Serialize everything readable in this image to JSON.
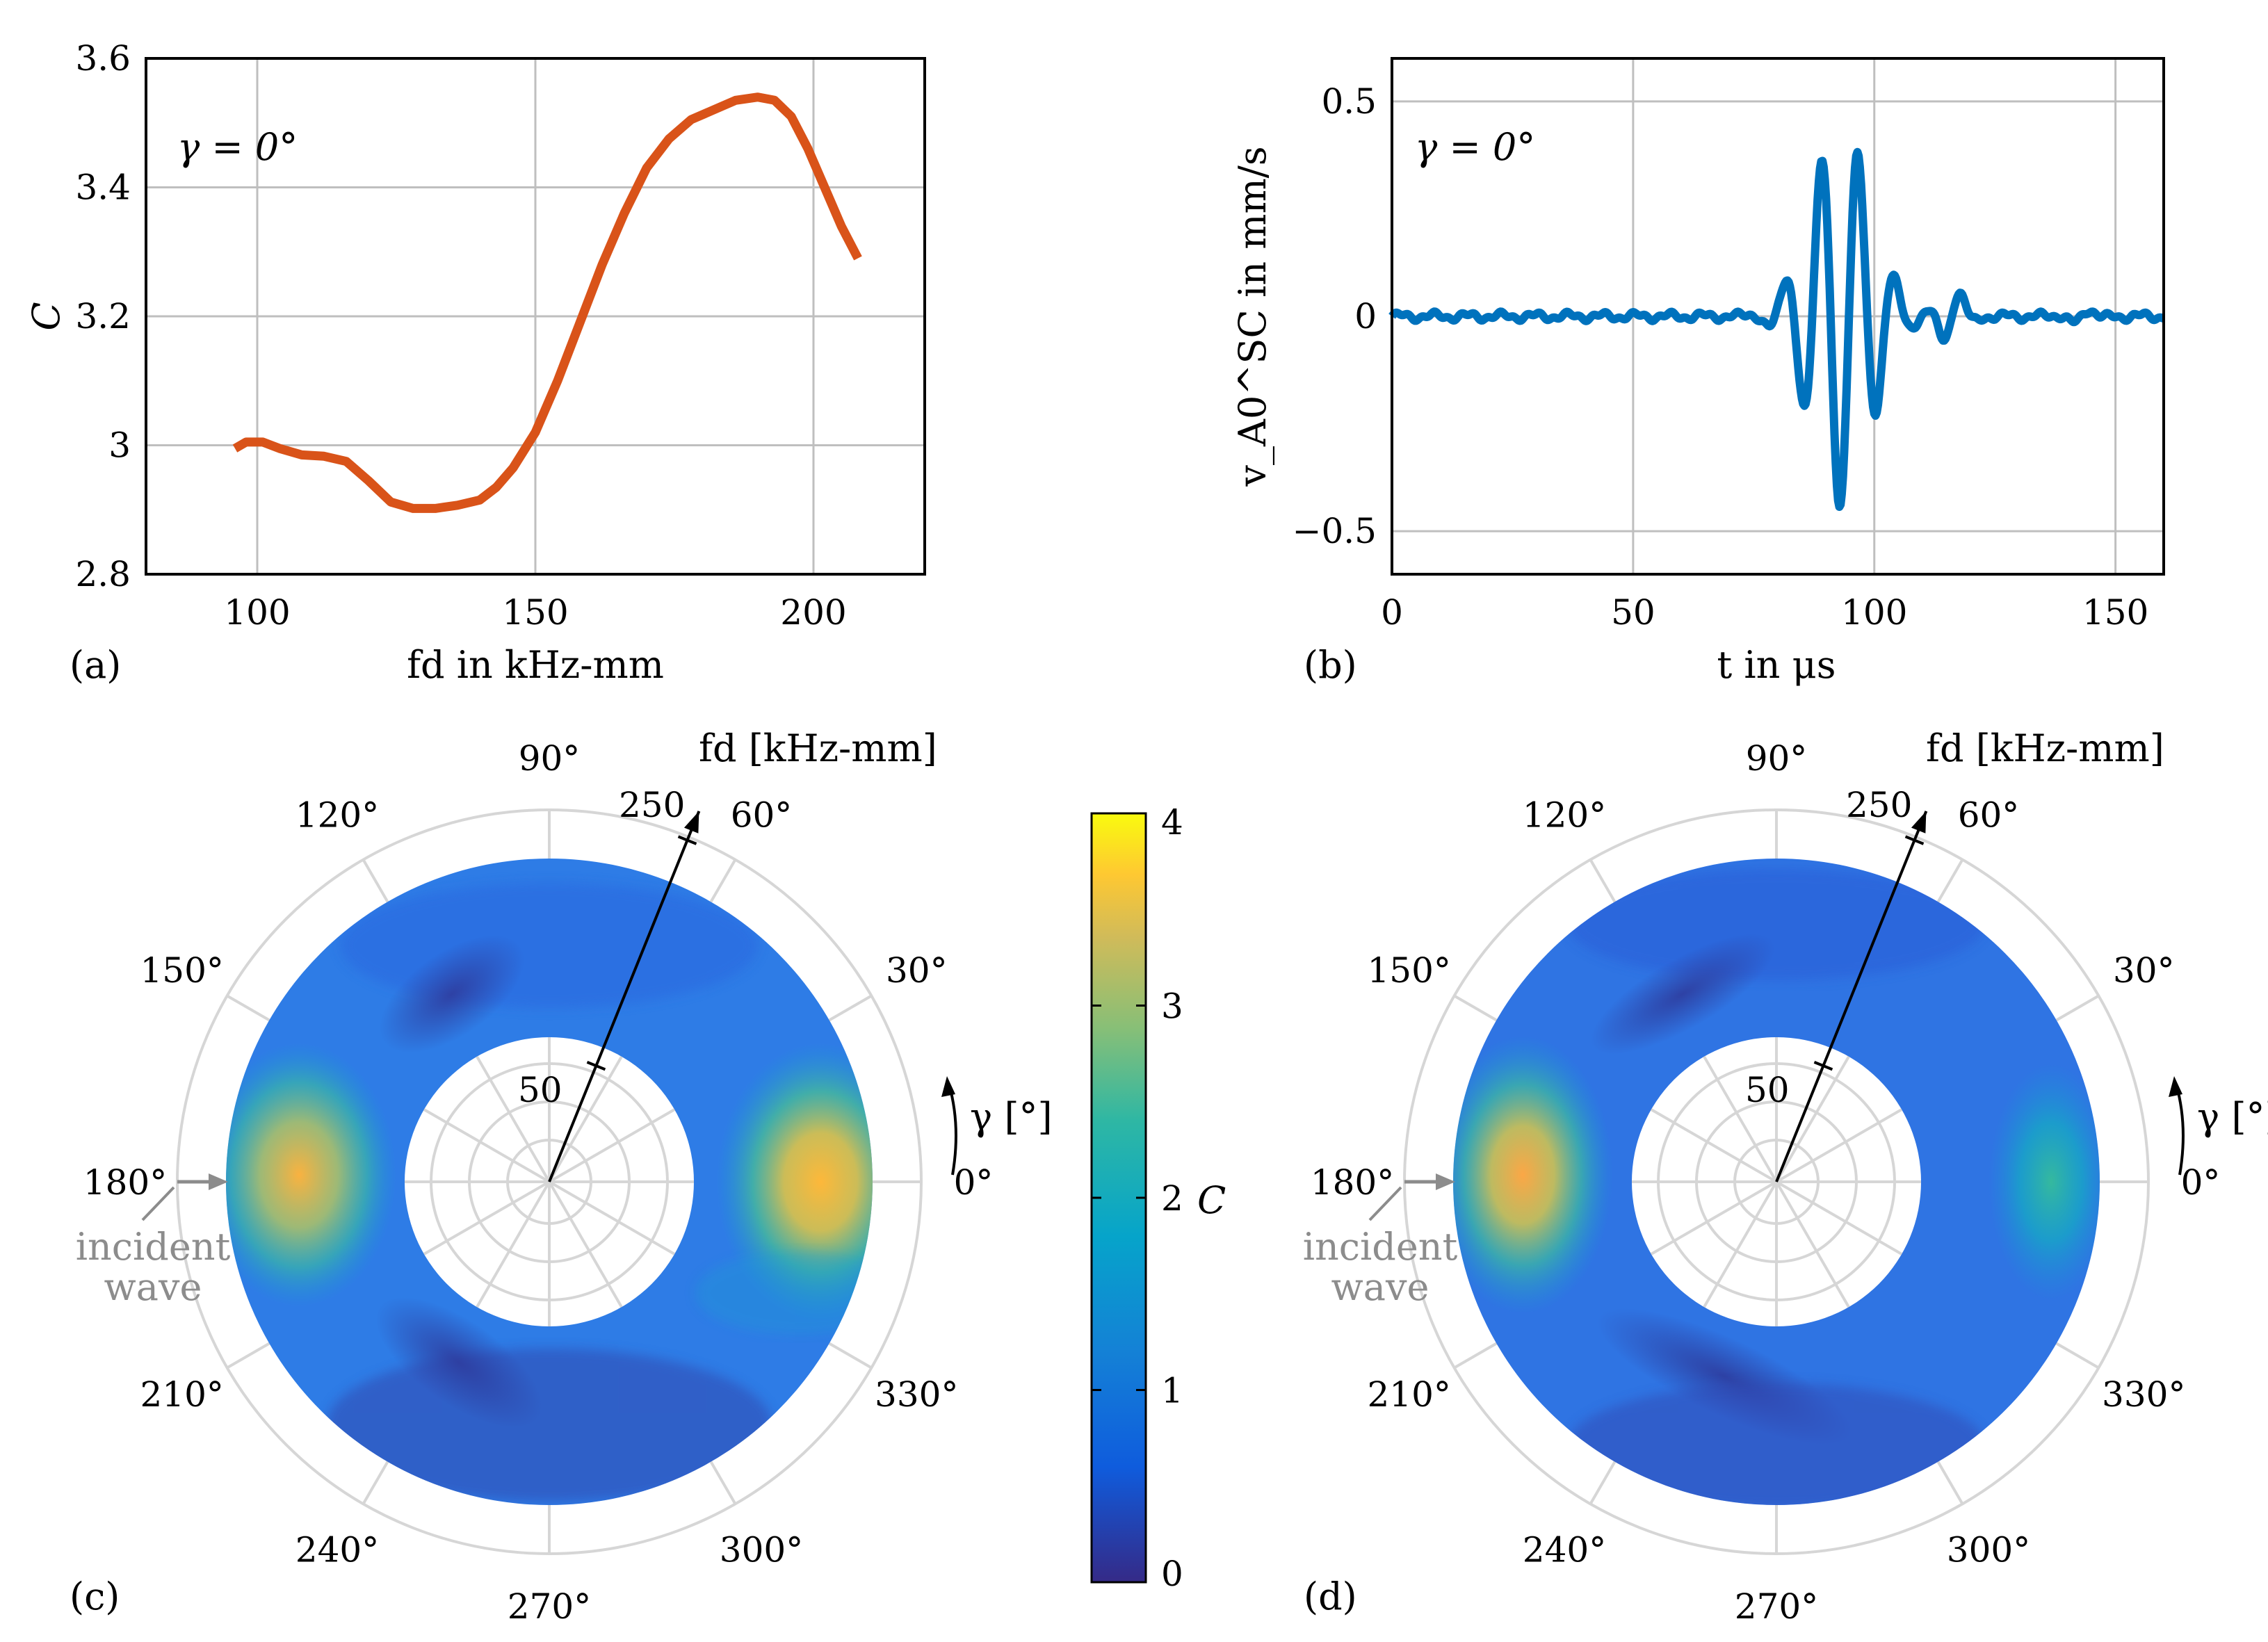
{
  "chart_data": [
    {
      "panel": "(a)",
      "type": "line",
      "annotation": "γ = 0°",
      "xlabel": "fd in kHz-mm",
      "ylabel": "C",
      "xlim": [
        80,
        220
      ],
      "ylim": [
        2.8,
        3.6
      ],
      "xticks": [
        "100",
        "150",
        "200"
      ],
      "yticks": [
        "2.8",
        "3",
        "3.2",
        "3.4",
        "3.6"
      ],
      "color": "#D95319",
      "series": [
        {
          "name": "C",
          "x": [
            96,
            98,
            101,
            104,
            108,
            112,
            116,
            120,
            124,
            128,
            132,
            136,
            140,
            143,
            146,
            150,
            154,
            158,
            162,
            166,
            170,
            174,
            178,
            182,
            186,
            190,
            193,
            196,
            199,
            202,
            205,
            208
          ],
          "y": [
            2.995,
            3.005,
            3.005,
            2.995,
            2.985,
            2.983,
            2.975,
            2.945,
            2.912,
            2.902,
            2.902,
            2.907,
            2.915,
            2.935,
            2.965,
            3.02,
            3.1,
            3.19,
            3.28,
            3.36,
            3.43,
            3.475,
            3.505,
            3.52,
            3.535,
            3.54,
            3.535,
            3.51,
            3.46,
            3.4,
            3.34,
            3.29
          ]
        }
      ]
    },
    {
      "panel": "(b)",
      "type": "line",
      "annotation": "γ = 0°",
      "xlabel": "t in μs",
      "ylabel": "v_A0^SC in mm/s",
      "xlim": [
        0,
        160
      ],
      "ylim": [
        -0.6,
        0.6
      ],
      "xticks": [
        "0",
        "50",
        "100",
        "150"
      ],
      "yticks": [
        "−0.5",
        "0",
        "0.5"
      ],
      "color": "#0072BD",
      "series": [
        {
          "name": "v_A0^SC",
          "description": "Gaussian-modulated tone burst centred near t = 93 μs, peak amplitude ≈ 0.45 mm/s, with small reflections near 116 μs"
        }
      ]
    },
    {
      "panel": "(c)",
      "type": "heatmap",
      "projection": "polar",
      "angle_label": "γ [°]",
      "radius_label": "fd [kHz-mm]",
      "radius_range": [
        80,
        220
      ],
      "radius_ticks": [
        "50",
        "250"
      ],
      "angle_ticks": [
        "0°",
        "30°",
        "60°",
        "90°",
        "120°",
        "150°",
        "180°",
        "210°",
        "240°",
        "270°",
        "300°",
        "330°"
      ],
      "incident_label": [
        "incident",
        "wave"
      ],
      "colorbar": {
        "label": "C",
        "range": [
          0,
          4
        ],
        "ticks": [
          "0",
          "1",
          "2",
          "3",
          "4"
        ]
      }
    },
    {
      "panel": "(d)",
      "type": "heatmap",
      "projection": "polar",
      "angle_label": "γ [°]",
      "radius_label": "fd [kHz-mm]",
      "radius_range": [
        80,
        220
      ],
      "radius_ticks": [
        "50",
        "250"
      ],
      "angle_ticks": [
        "0°",
        "30°",
        "60°",
        "90°",
        "120°",
        "150°",
        "180°",
        "210°",
        "240°",
        "270°",
        "300°",
        "330°"
      ],
      "incident_label": [
        "incident",
        "wave"
      ]
    }
  ]
}
